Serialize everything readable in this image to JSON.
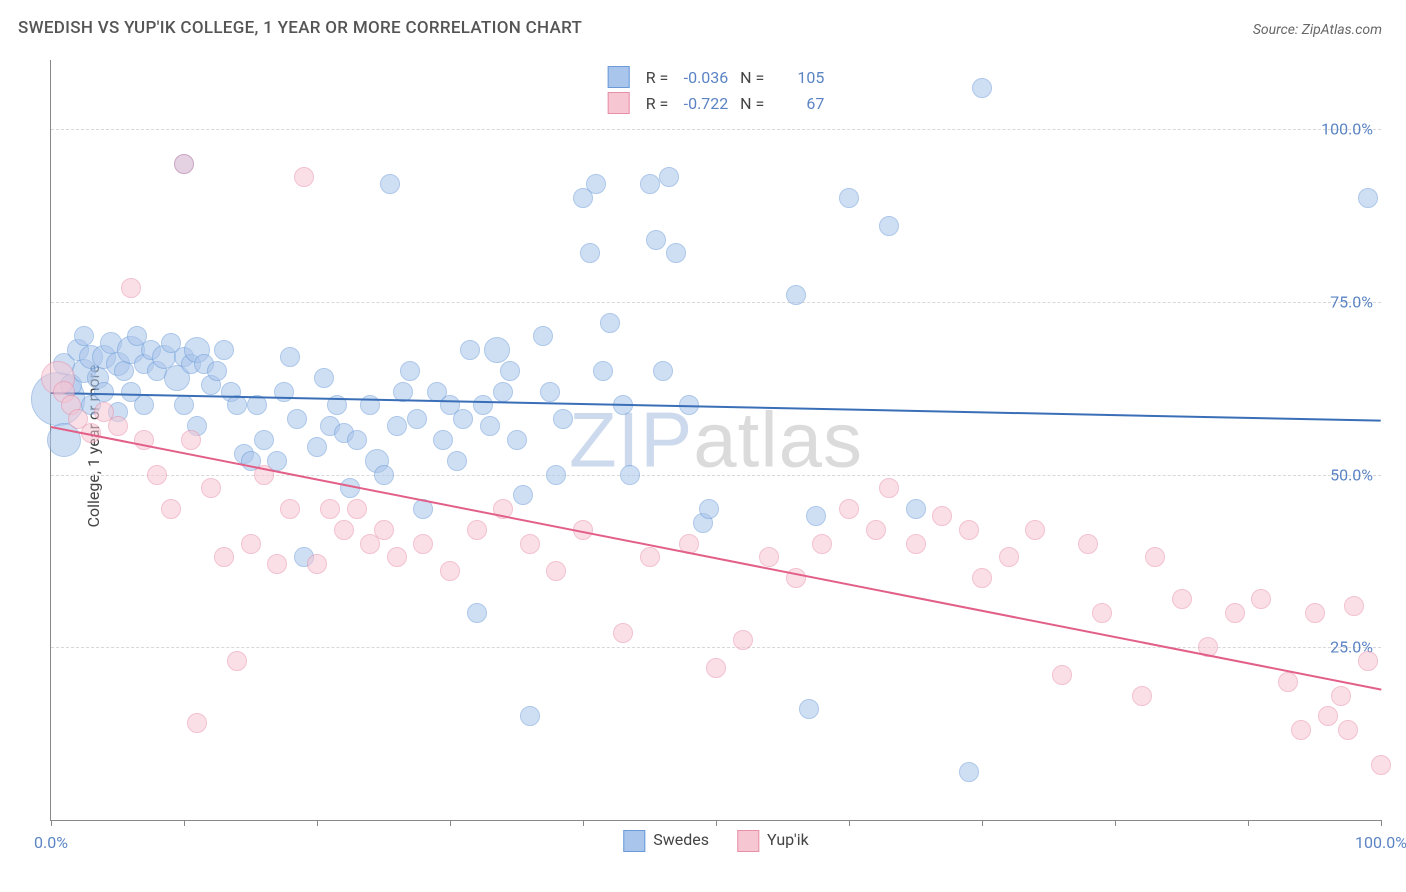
{
  "title": "SWEDISH VS YUP'IK COLLEGE, 1 YEAR OR MORE CORRELATION CHART",
  "source": "Source: ZipAtlas.com",
  "y_axis_label": "College, 1 year or more",
  "watermark": {
    "part1": "ZIP",
    "part2": "atlas"
  },
  "chart": {
    "type": "scatter",
    "xlim": [
      0,
      100
    ],
    "ylim": [
      0,
      110
    ],
    "background_color": "#ffffff",
    "grid_color": "#d8d8d8",
    "x_ticks": [
      0,
      10,
      20,
      30,
      40,
      50,
      60,
      70,
      80,
      90,
      100
    ],
    "x_tick_labels": {
      "0": "0.0%",
      "100": "100.0%"
    },
    "y_ticks": [
      25,
      50,
      75,
      100
    ],
    "y_tick_labels": {
      "25": "25.0%",
      "50": "50.0%",
      "75": "75.0%",
      "100": "100.0%"
    },
    "marker_radius": 8.5,
    "marker_opacity": 0.55,
    "series": [
      {
        "name": "Swedes",
        "color_fill": "#a9c5eb",
        "color_stroke": "#6a9bd8",
        "trend": {
          "x1": 0,
          "y1": 62,
          "x2": 100,
          "y2": 58,
          "color": "#3a6fb7",
          "width": 2
        },
        "stats": {
          "R": "-0.036",
          "N": "105"
        },
        "points": [
          [
            0.5,
            61,
            26
          ],
          [
            1,
            55,
            16
          ],
          [
            1,
            66,
            10
          ],
          [
            1.5,
            63,
            10
          ],
          [
            2,
            68,
            10
          ],
          [
            2.5,
            65,
            11
          ],
          [
            2.5,
            70,
            9
          ],
          [
            3,
            67,
            11
          ],
          [
            3,
            60,
            9
          ],
          [
            3.5,
            64,
            10
          ],
          [
            4,
            67,
            11
          ],
          [
            4,
            62,
            9
          ],
          [
            4.5,
            69,
            10
          ],
          [
            5,
            66,
            11
          ],
          [
            5,
            59,
            9
          ],
          [
            5.5,
            65,
            9
          ],
          [
            6,
            68,
            13
          ],
          [
            6,
            62,
            9
          ],
          [
            6.5,
            70,
            9
          ],
          [
            7,
            66,
            9
          ],
          [
            7,
            60,
            9
          ],
          [
            7.5,
            68,
            9
          ],
          [
            8,
            65,
            9
          ],
          [
            8.5,
            67,
            11
          ],
          [
            9,
            69,
            9
          ],
          [
            9.5,
            64,
            12
          ],
          [
            10,
            67,
            9
          ],
          [
            10,
            60,
            9
          ],
          [
            10.5,
            66,
            9
          ],
          [
            11,
            68,
            12
          ],
          [
            11,
            57,
            9
          ],
          [
            11.5,
            66,
            9
          ],
          [
            10,
            95,
            9
          ],
          [
            12,
            63,
            9
          ],
          [
            12.5,
            65,
            9
          ],
          [
            13,
            68,
            9
          ],
          [
            13.5,
            62,
            9
          ],
          [
            14,
            60,
            9
          ],
          [
            14.5,
            53,
            9
          ],
          [
            15,
            52,
            9
          ],
          [
            15.5,
            60,
            9
          ],
          [
            16,
            55,
            9
          ],
          [
            17,
            52,
            9
          ],
          [
            17.5,
            62,
            9
          ],
          [
            18,
            67,
            9
          ],
          [
            18.5,
            58,
            9
          ],
          [
            19,
            38,
            9
          ],
          [
            20,
            54,
            9
          ],
          [
            20.5,
            64,
            9
          ],
          [
            21,
            57,
            9
          ],
          [
            21.5,
            60,
            9
          ],
          [
            22,
            56,
            9
          ],
          [
            22.5,
            48,
            9
          ],
          [
            23,
            55,
            9
          ],
          [
            24,
            60,
            9
          ],
          [
            24.5,
            52,
            11
          ],
          [
            25,
            50,
            9
          ],
          [
            25.5,
            92,
            9
          ],
          [
            26,
            57,
            9
          ],
          [
            26.5,
            62,
            9
          ],
          [
            27,
            65,
            9
          ],
          [
            27.5,
            58,
            9
          ],
          [
            28,
            45,
            9
          ],
          [
            29,
            62,
            9
          ],
          [
            29.5,
            55,
            9
          ],
          [
            30,
            60,
            9
          ],
          [
            30.5,
            52,
            9
          ],
          [
            31,
            58,
            9
          ],
          [
            31.5,
            68,
            9
          ],
          [
            32,
            30,
            9
          ],
          [
            32.5,
            60,
            9
          ],
          [
            33,
            57,
            9
          ],
          [
            33.5,
            68,
            12
          ],
          [
            34,
            62,
            9
          ],
          [
            34.5,
            65,
            9
          ],
          [
            35,
            55,
            9
          ],
          [
            35.5,
            47,
            9
          ],
          [
            36,
            15,
            9
          ],
          [
            37,
            70,
            9
          ],
          [
            37.5,
            62,
            9
          ],
          [
            38,
            50,
            9
          ],
          [
            38.5,
            58,
            9
          ],
          [
            40,
            90,
            9
          ],
          [
            40.5,
            82,
            9
          ],
          [
            41,
            92,
            9
          ],
          [
            41.5,
            65,
            9
          ],
          [
            42,
            72,
            9
          ],
          [
            43,
            60,
            9
          ],
          [
            43.5,
            50,
            9
          ],
          [
            45,
            92,
            9
          ],
          [
            45.5,
            84,
            9
          ],
          [
            46,
            65,
            9
          ],
          [
            46.5,
            93,
            9
          ],
          [
            47,
            82,
            9
          ],
          [
            48,
            60,
            9
          ],
          [
            49,
            43,
            9
          ],
          [
            49.5,
            45,
            9
          ],
          [
            56,
            76,
            9
          ],
          [
            57,
            16,
            9
          ],
          [
            57.5,
            44,
            9
          ],
          [
            60,
            90,
            9
          ],
          [
            63,
            86,
            9
          ],
          [
            65,
            45,
            9
          ],
          [
            69,
            7,
            9
          ],
          [
            70,
            106,
            9
          ],
          [
            99,
            90,
            9
          ]
        ]
      },
      {
        "name": "Yup'ik",
        "color_fill": "#f6c6d3",
        "color_stroke": "#e98fa8",
        "trend": {
          "x1": 0,
          "y1": 57,
          "x2": 100,
          "y2": 19,
          "color": "#e26088",
          "width": 2
        },
        "stats": {
          "R": "-0.722",
          "N": "67"
        },
        "points": [
          [
            0.5,
            64,
            16
          ],
          [
            1,
            62,
            10
          ],
          [
            1.5,
            60,
            9
          ],
          [
            2,
            58,
            9
          ],
          [
            3,
            56,
            9
          ],
          [
            4,
            59,
            9
          ],
          [
            5,
            57,
            9
          ],
          [
            6,
            77,
            9
          ],
          [
            7,
            55,
            9
          ],
          [
            8,
            50,
            9
          ],
          [
            9,
            45,
            9
          ],
          [
            10,
            95,
            9
          ],
          [
            10.5,
            55,
            9
          ],
          [
            11,
            14,
            9
          ],
          [
            12,
            48,
            9
          ],
          [
            13,
            38,
            9
          ],
          [
            14,
            23,
            9
          ],
          [
            15,
            40,
            9
          ],
          [
            16,
            50,
            9
          ],
          [
            17,
            37,
            9
          ],
          [
            18,
            45,
            9
          ],
          [
            19,
            93,
            9
          ],
          [
            20,
            37,
            9
          ],
          [
            21,
            45,
            9
          ],
          [
            22,
            42,
            9
          ],
          [
            23,
            45,
            9
          ],
          [
            24,
            40,
            9
          ],
          [
            25,
            42,
            9
          ],
          [
            26,
            38,
            9
          ],
          [
            28,
            40,
            9
          ],
          [
            30,
            36,
            9
          ],
          [
            32,
            42,
            9
          ],
          [
            34,
            45,
            9
          ],
          [
            36,
            40,
            9
          ],
          [
            38,
            36,
            9
          ],
          [
            40,
            42,
            9
          ],
          [
            43,
            27,
            9
          ],
          [
            45,
            38,
            9
          ],
          [
            48,
            40,
            9
          ],
          [
            50,
            22,
            9
          ],
          [
            52,
            26,
            9
          ],
          [
            54,
            38,
            9
          ],
          [
            56,
            35,
            9
          ],
          [
            58,
            40,
            9
          ],
          [
            60,
            45,
            9
          ],
          [
            62,
            42,
            9
          ],
          [
            63,
            48,
            9
          ],
          [
            65,
            40,
            9
          ],
          [
            67,
            44,
            9
          ],
          [
            69,
            42,
            9
          ],
          [
            70,
            35,
            9
          ],
          [
            72,
            38,
            9
          ],
          [
            74,
            42,
            9
          ],
          [
            76,
            21,
            9
          ],
          [
            78,
            40,
            9
          ],
          [
            79,
            30,
            9
          ],
          [
            82,
            18,
            9
          ],
          [
            83,
            38,
            9
          ],
          [
            85,
            32,
            9
          ],
          [
            87,
            25,
            9
          ],
          [
            89,
            30,
            9
          ],
          [
            91,
            32,
            9
          ],
          [
            93,
            20,
            9
          ],
          [
            95,
            30,
            9
          ],
          [
            97,
            18,
            9
          ],
          [
            97.5,
            13,
            9
          ],
          [
            98,
            31,
            9
          ],
          [
            99,
            23,
            9
          ],
          [
            100,
            8,
            9
          ],
          [
            96,
            15,
            9
          ],
          [
            94,
            13,
            9
          ]
        ]
      }
    ],
    "legend_bottom": [
      {
        "swatch_fill": "#a9c5eb",
        "swatch_stroke": "#6a9bd8",
        "label": "Swedes"
      },
      {
        "swatch_fill": "#f6c6d3",
        "swatch_stroke": "#e98fa8",
        "label": "Yup'ik"
      }
    ]
  }
}
